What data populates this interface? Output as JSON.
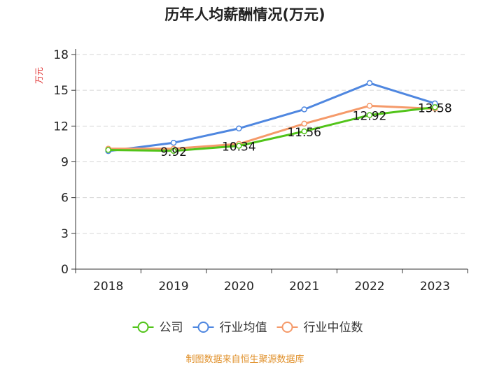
{
  "chart_data": {
    "type": "line",
    "title": "历年人均薪酬情况(万元)",
    "ylabel": "万元",
    "xlabel": "",
    "categories": [
      "2018",
      "2019",
      "2020",
      "2021",
      "2022",
      "2023"
    ],
    "ylim": [
      0,
      18
    ],
    "yticks": [
      0,
      3,
      6,
      9,
      12,
      15,
      18
    ],
    "grid": true,
    "legend_position": "bottom",
    "series": [
      {
        "name": "公司",
        "color": "#52c41a",
        "values": [
          10.0,
          9.92,
          10.34,
          11.56,
          12.92,
          13.58
        ]
      },
      {
        "name": "行业均值",
        "color": "#4f87e0",
        "values": [
          9.9,
          10.6,
          11.8,
          13.4,
          15.6,
          13.9
        ]
      },
      {
        "name": "行业中位数",
        "color": "#f59a6a",
        "values": [
          10.1,
          10.1,
          10.5,
          12.2,
          13.7,
          13.45
        ]
      }
    ],
    "data_labels": [
      {
        "category": "2019",
        "text": "9.92"
      },
      {
        "category": "2020",
        "text": "10.34"
      },
      {
        "category": "2021",
        "text": "11.56"
      },
      {
        "category": "2022",
        "text": "12.92"
      },
      {
        "category": "2023",
        "text": "13.58"
      }
    ]
  },
  "source_text": "制图数据来自恒生聚源数据库"
}
